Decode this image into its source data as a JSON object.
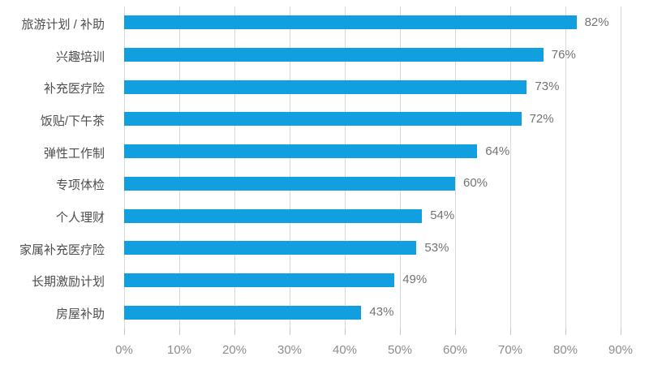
{
  "chart_data": {
    "type": "bar",
    "orientation": "horizontal",
    "title": "",
    "xlabel": "",
    "ylabel": "",
    "categories": [
      "旅游计划 / 补助",
      "兴趣培训",
      "补充医疗险",
      "饭贴/下午茶",
      "弹性工作制",
      "专项体检",
      "个人理财",
      "家属补充医疗险",
      "长期激励计划",
      "房屋补助"
    ],
    "values": [
      82,
      76,
      73,
      72,
      64,
      60,
      54,
      53,
      49,
      43
    ],
    "value_labels": [
      "82%",
      "76%",
      "73%",
      "72%",
      "64%",
      "60%",
      "54%",
      "53%",
      "49%",
      "43%"
    ],
    "x_ticks": [
      "0%",
      "10%",
      "20%",
      "30%",
      "40%",
      "50%",
      "60%",
      "70%",
      "80%",
      "90%"
    ],
    "x_tick_values": [
      0,
      10,
      20,
      30,
      40,
      50,
      60,
      70,
      80,
      90
    ],
    "xlim": [
      0,
      90
    ],
    "grid": true,
    "legend": false,
    "colors": {
      "bar": "#129fdf",
      "gridline": "#d9d9d9",
      "tick": "#c6c6c6",
      "category_label": "#4d4d4d",
      "value_label": "#737373",
      "axis_label": "#8c8c8c",
      "background": "#ffffff"
    }
  }
}
